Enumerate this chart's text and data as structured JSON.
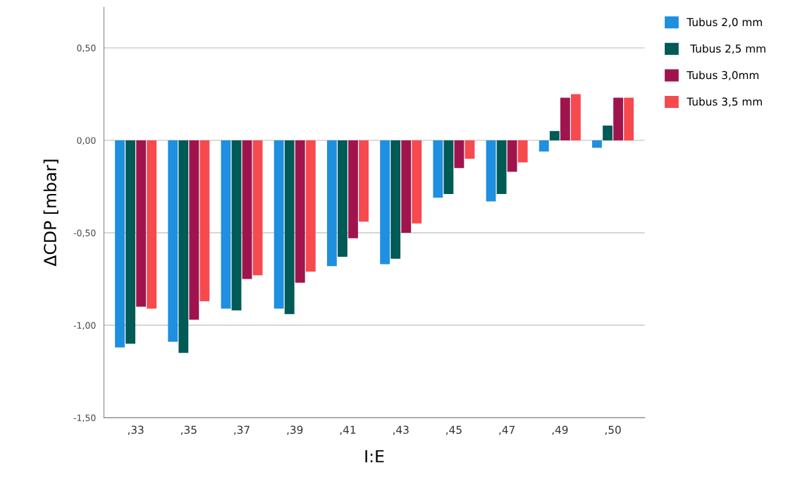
{
  "chart_data": {
    "type": "bar",
    "xlabel": "I:E",
    "ylabel": "ΔCDP [mbar]",
    "categories": [
      ",33",
      ",35",
      ",37",
      ",39",
      ",41",
      ",43",
      ",45",
      ",47",
      ",49",
      ",50"
    ],
    "series": [
      {
        "name": "Tubus 2,0 mm",
        "color": "#1f8fe0",
        "values": [
          -1.12,
          -1.09,
          -0.91,
          -0.91,
          -0.68,
          -0.67,
          -0.31,
          -0.33,
          -0.06,
          -0.04
        ]
      },
      {
        "name": " Tubus 2,5 mm",
        "color": "#005a55",
        "values": [
          -1.1,
          -1.15,
          -0.92,
          -0.94,
          -0.63,
          -0.64,
          -0.29,
          -0.29,
          0.05,
          0.08
        ]
      },
      {
        "name": "Tubus 3,0mm",
        "color": "#a0144e",
        "values": [
          -0.9,
          -0.97,
          -0.75,
          -0.77,
          -0.53,
          -0.5,
          -0.15,
          -0.17,
          0.23,
          0.23
        ]
      },
      {
        "name": "Tubus 3,5 mm",
        "color": "#f64a4f",
        "values": [
          -0.91,
          -0.87,
          -0.73,
          -0.71,
          -0.44,
          -0.45,
          -0.1,
          -0.12,
          0.25,
          0.23
        ]
      }
    ],
    "ylim": [
      -1.5,
      0.72
    ],
    "yticks": [
      {
        "value": -1.5,
        "label": "-1,50"
      },
      {
        "value": -1.0,
        "label": "-1,00"
      },
      {
        "value": -0.5,
        "label": "-0,50"
      },
      {
        "value": 0.0,
        "label": "0,00"
      },
      {
        "value": 0.5,
        "label": "0,50"
      }
    ],
    "grid": "y",
    "legend": "top right"
  }
}
